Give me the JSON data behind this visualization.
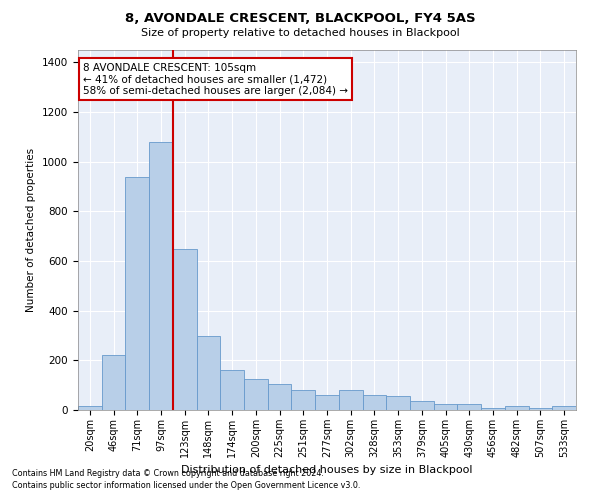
{
  "title1": "8, AVONDALE CRESCENT, BLACKPOOL, FY4 5AS",
  "title2": "Size of property relative to detached houses in Blackpool",
  "xlabel": "Distribution of detached houses by size in Blackpool",
  "ylabel": "Number of detached properties",
  "footnote1": "Contains HM Land Registry data © Crown copyright and database right 2024.",
  "footnote2": "Contains public sector information licensed under the Open Government Licence v3.0.",
  "categories": [
    "20sqm",
    "46sqm",
    "71sqm",
    "97sqm",
    "123sqm",
    "148sqm",
    "174sqm",
    "200sqm",
    "225sqm",
    "251sqm",
    "277sqm",
    "302sqm",
    "328sqm",
    "353sqm",
    "379sqm",
    "405sqm",
    "430sqm",
    "456sqm",
    "482sqm",
    "507sqm",
    "533sqm"
  ],
  "values": [
    15,
    220,
    940,
    1080,
    650,
    300,
    160,
    125,
    105,
    80,
    60,
    80,
    60,
    55,
    35,
    25,
    25,
    10,
    15,
    10,
    15
  ],
  "bar_color": "#b8cfe8",
  "bar_edge_color": "#6699cc",
  "bg_color": "#e8eef8",
  "grid_color": "#ffffff",
  "vline_x_idx": 3.5,
  "vline_color": "#cc0000",
  "annotation_text": "8 AVONDALE CRESCENT: 105sqm\n← 41% of detached houses are smaller (1,472)\n58% of semi-detached houses are larger (2,084) →",
  "annotation_box_color": "#cc0000",
  "ylim": [
    0,
    1450
  ],
  "yticks": [
    0,
    200,
    400,
    600,
    800,
    1000,
    1200,
    1400
  ]
}
